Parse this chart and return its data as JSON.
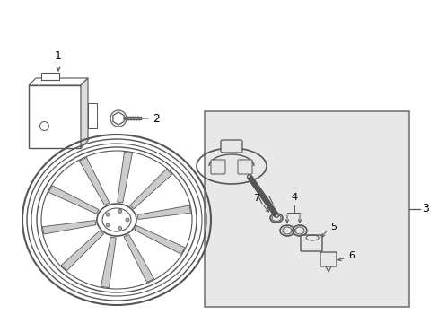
{
  "bg_color": "#ffffff",
  "box_bg": "#e8e8e8",
  "line_color": "#555555",
  "label_color": "#000000",
  "figsize": [
    4.89,
    3.6
  ],
  "dpi": 100
}
